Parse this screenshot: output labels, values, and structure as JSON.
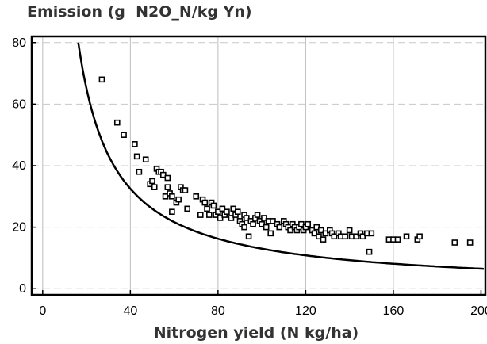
{
  "chart_data": {
    "type": "scatter",
    "title": "Emission (g  N2O_N/kg Yn)",
    "xlabel": "Nitrogen yield (N kg/ha)",
    "ylabel": "",
    "xlim": [
      -5,
      202
    ],
    "ylim": [
      -2,
      82
    ],
    "x_ticks": [
      0,
      40,
      80,
      120,
      160,
      200
    ],
    "y_ticks": [
      0,
      20,
      40,
      60,
      80
    ],
    "grid": true,
    "points": [
      [
        27,
        68
      ],
      [
        34,
        54
      ],
      [
        37,
        50
      ],
      [
        42,
        47
      ],
      [
        43,
        43
      ],
      [
        44,
        38
      ],
      [
        47,
        42
      ],
      [
        49,
        34
      ],
      [
        50,
        35
      ],
      [
        51,
        33
      ],
      [
        52,
        39
      ],
      [
        53,
        38
      ],
      [
        54,
        38
      ],
      [
        55,
        37
      ],
      [
        56,
        30
      ],
      [
        57,
        36
      ],
      [
        57,
        33
      ],
      [
        58,
        31
      ],
      [
        59,
        30
      ],
      [
        59,
        25
      ],
      [
        61,
        28
      ],
      [
        62,
        29
      ],
      [
        63,
        33
      ],
      [
        64,
        32
      ],
      [
        65,
        32
      ],
      [
        66,
        26
      ],
      [
        70,
        30
      ],
      [
        72,
        24
      ],
      [
        73,
        29
      ],
      [
        74,
        28
      ],
      [
        75,
        26
      ],
      [
        76,
        24
      ],
      [
        77,
        28
      ],
      [
        78,
        27
      ],
      [
        79,
        24
      ],
      [
        80,
        25
      ],
      [
        81,
        23
      ],
      [
        82,
        26
      ],
      [
        83,
        24
      ],
      [
        84,
        25
      ],
      [
        86,
        23
      ],
      [
        87,
        26
      ],
      [
        88,
        24
      ],
      [
        89,
        25
      ],
      [
        90,
        22
      ],
      [
        91,
        21
      ],
      [
        92,
        20
      ],
      [
        92,
        24
      ],
      [
        93,
        23
      ],
      [
        94,
        17
      ],
      [
        95,
        22
      ],
      [
        96,
        21
      ],
      [
        97,
        23
      ],
      [
        98,
        24
      ],
      [
        99,
        22
      ],
      [
        100,
        21
      ],
      [
        101,
        23
      ],
      [
        102,
        20
      ],
      [
        103,
        22
      ],
      [
        104,
        18
      ],
      [
        105,
        22
      ],
      [
        107,
        21
      ],
      [
        108,
        20
      ],
      [
        110,
        22
      ],
      [
        111,
        21
      ],
      [
        112,
        20
      ],
      [
        113,
        19
      ],
      [
        114,
        21
      ],
      [
        115,
        20
      ],
      [
        116,
        19
      ],
      [
        117,
        20
      ],
      [
        118,
        21
      ],
      [
        119,
        19
      ],
      [
        120,
        20
      ],
      [
        121,
        21
      ],
      [
        123,
        19
      ],
      [
        124,
        18
      ],
      [
        125,
        20
      ],
      [
        126,
        17
      ],
      [
        127,
        19
      ],
      [
        128,
        16
      ],
      [
        129,
        18
      ],
      [
        131,
        19
      ],
      [
        132,
        18
      ],
      [
        133,
        17
      ],
      [
        135,
        18
      ],
      [
        136,
        17
      ],
      [
        138,
        17
      ],
      [
        140,
        19
      ],
      [
        141,
        17
      ],
      [
        143,
        17
      ],
      [
        145,
        18
      ],
      [
        146,
        17
      ],
      [
        148,
        18
      ],
      [
        149,
        12
      ],
      [
        150,
        18
      ],
      [
        158,
        16
      ],
      [
        160,
        16
      ],
      [
        162,
        16
      ],
      [
        166,
        17
      ],
      [
        171,
        16
      ],
      [
        172,
        17
      ],
      [
        188,
        15
      ],
      [
        195,
        15
      ]
    ],
    "fit_curve": {
      "type": "power",
      "a": 1300,
      "b": -1
    }
  }
}
